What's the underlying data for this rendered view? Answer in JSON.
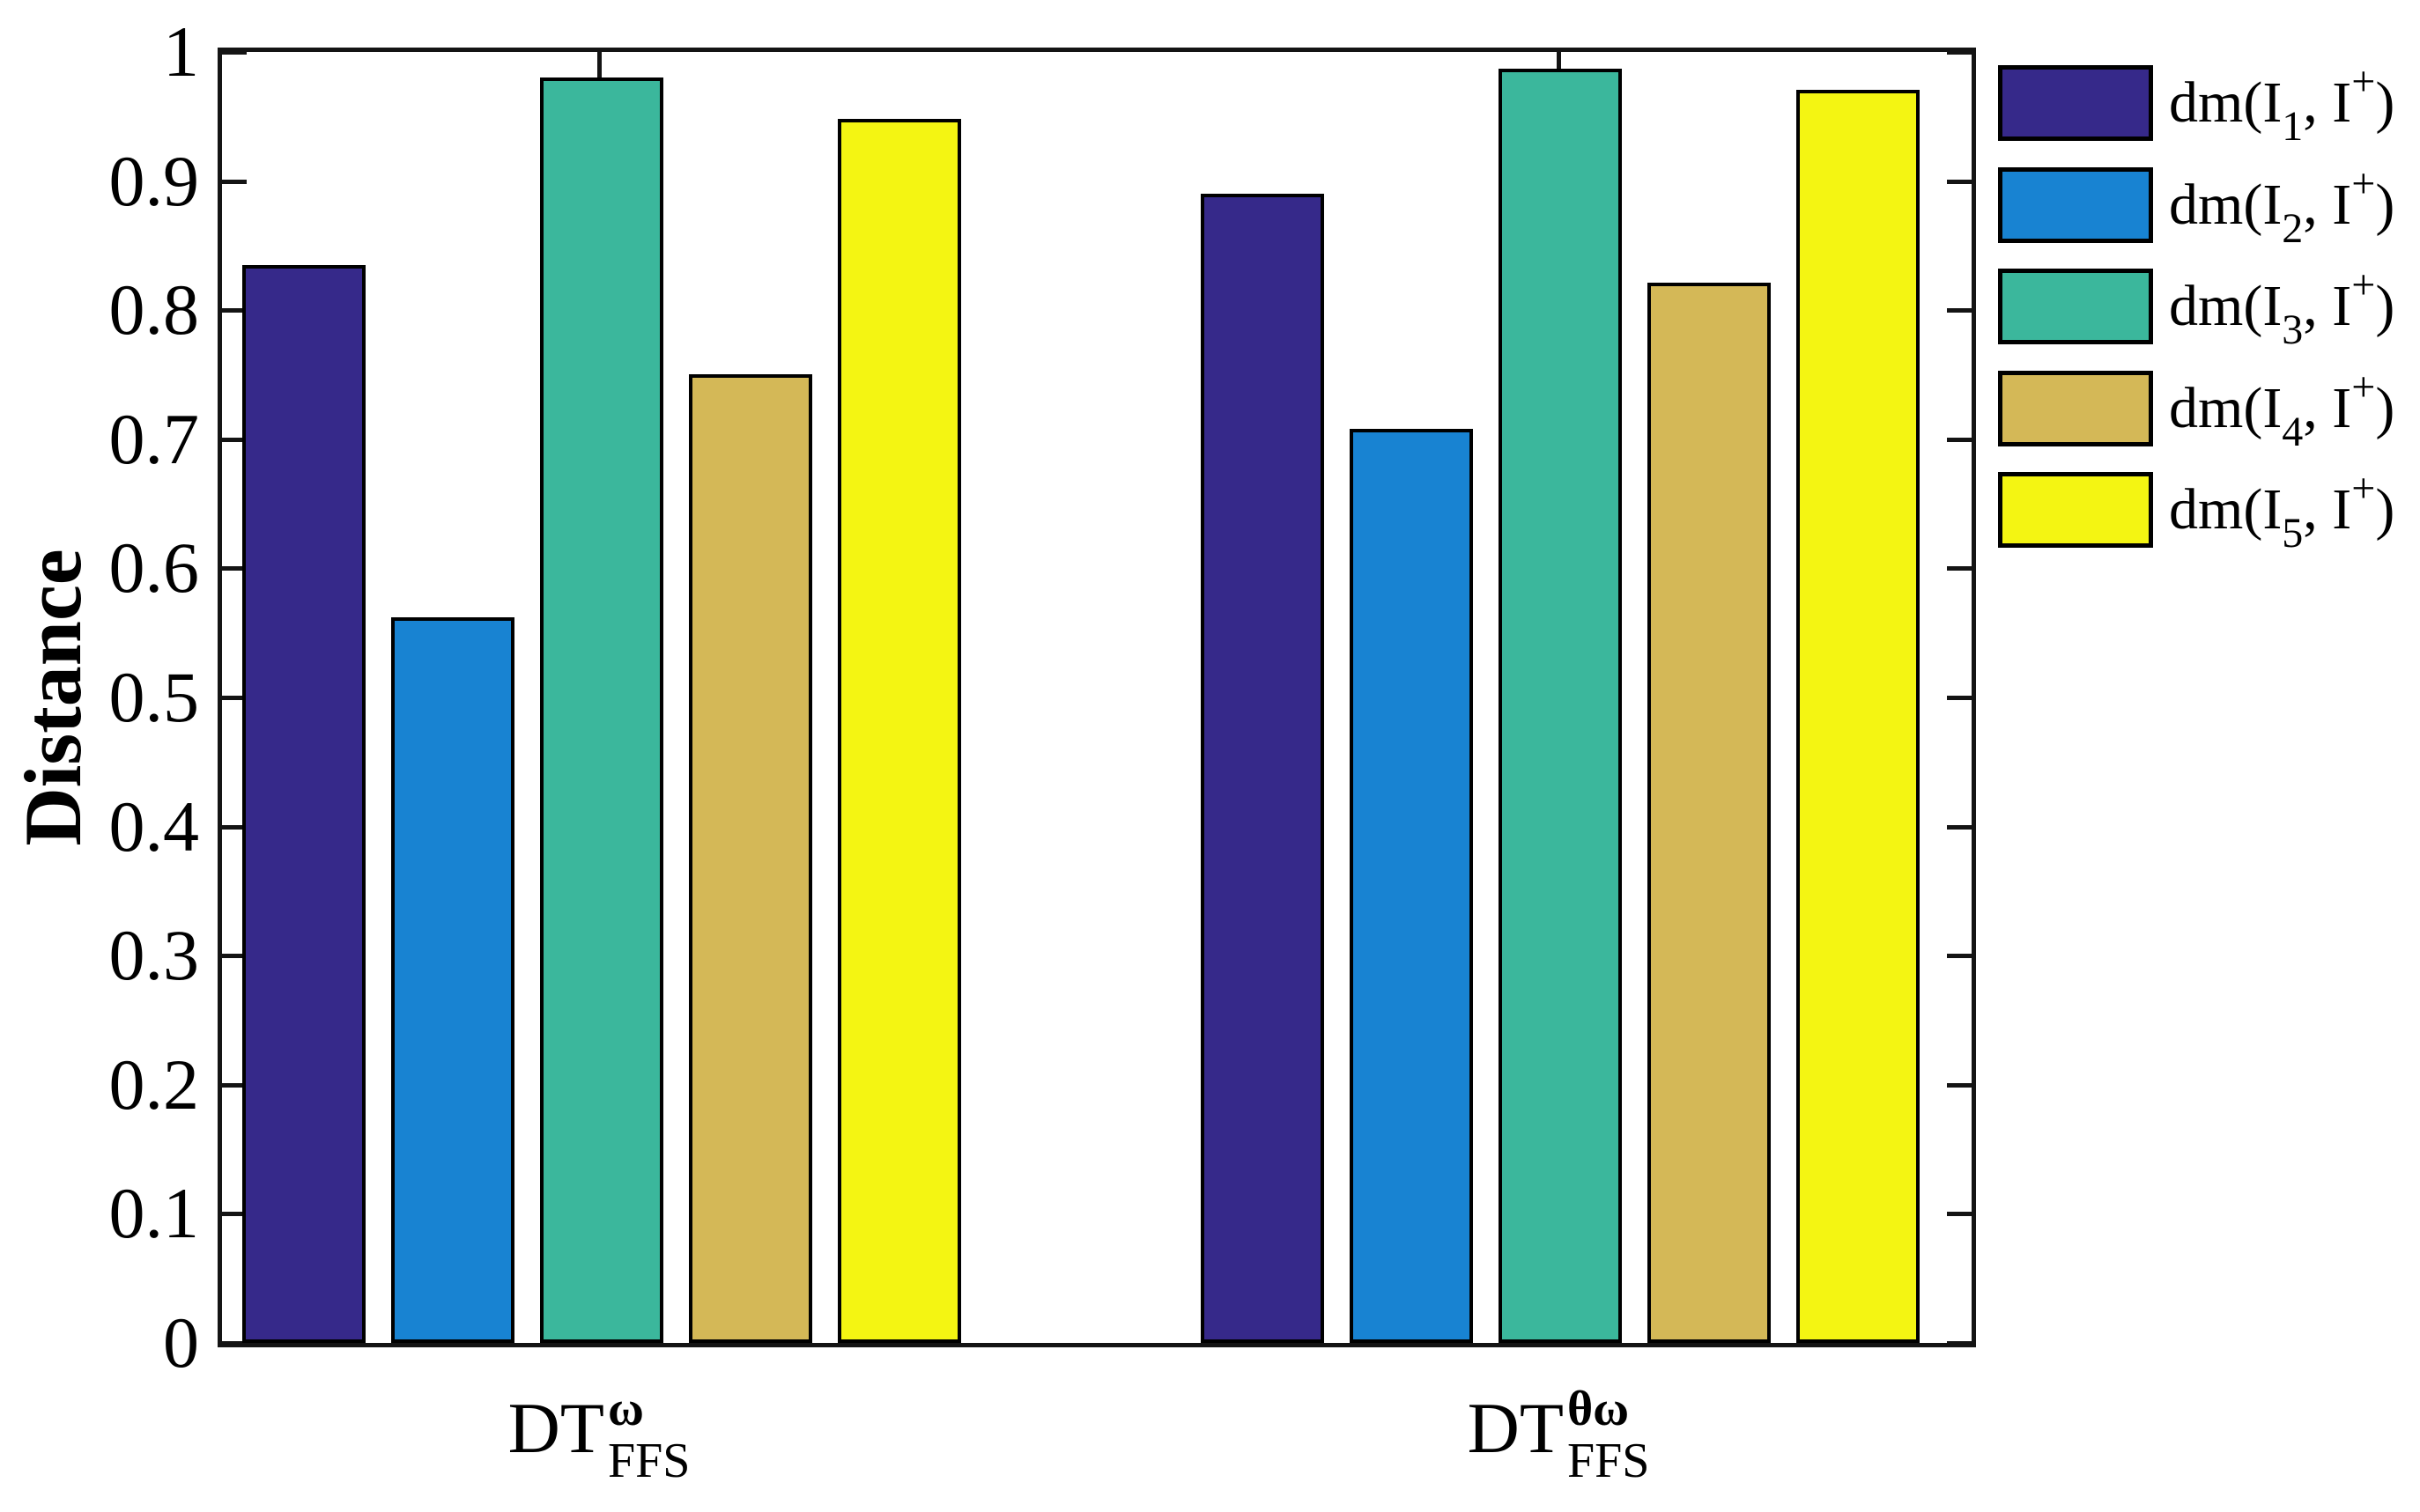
{
  "figure": {
    "background": "#ffffff",
    "axis_color": "#141414",
    "bar_edge_color": "#000000"
  },
  "chart_data": {
    "type": "bar",
    "title": "",
    "xlabel": "",
    "ylabel": "Distance",
    "ylim": [
      0,
      1
    ],
    "grid": false,
    "legend_position": "outside-top-right",
    "ytick_values": [
      0,
      0.1,
      0.2,
      0.3,
      0.4,
      0.5,
      0.6,
      0.7,
      0.8,
      0.9,
      1
    ],
    "ytick_labels": [
      "0",
      "0.1",
      "0.2",
      "0.3",
      "0.4",
      "0.5",
      "0.6",
      "0.7",
      "0.8",
      "0.9",
      "1"
    ],
    "categories": [
      {
        "plain": "DT_FFS^w",
        "base": "DT",
        "sup": "ω",
        "sub": "FFS"
      },
      {
        "plain": "DT_FFS^thetaw",
        "base": "DT",
        "sup": "θω",
        "sub": "FFS"
      }
    ],
    "series": [
      {
        "name": "dm(I1, I+)",
        "color": "#36298A",
        "values": [
          0.835,
          0.89
        ],
        "legend": {
          "pre": "dm(I",
          "sub": "1",
          "mid": ", I",
          "sup": "+",
          "post": ")"
        }
      },
      {
        "name": "dm(I2, I+)",
        "color": "#1883D2",
        "values": [
          0.562,
          0.708
        ],
        "legend": {
          "pre": "dm(I",
          "sub": "2",
          "mid": ", I",
          "sup": "+",
          "post": ")"
        }
      },
      {
        "name": "dm(I3, I+)",
        "color": "#3BB79C",
        "values": [
          0.98,
          0.987
        ],
        "legend": {
          "pre": "dm(I",
          "sub": "3",
          "mid": ", I",
          "sup": "+",
          "post": ")"
        }
      },
      {
        "name": "dm(I4, I+)",
        "color": "#D4B857",
        "values": [
          0.75,
          0.821
        ],
        "legend": {
          "pre": "dm(I",
          "sub": "4",
          "mid": ", I",
          "sup": "+",
          "post": ")"
        }
      },
      {
        "name": "dm(I5, I+)",
        "color": "#F4F512",
        "values": [
          0.948,
          0.971
        ],
        "legend": {
          "pre": "dm(I",
          "sub": "5",
          "mid": ", I",
          "sup": "+",
          "post": ")"
        }
      }
    ]
  }
}
